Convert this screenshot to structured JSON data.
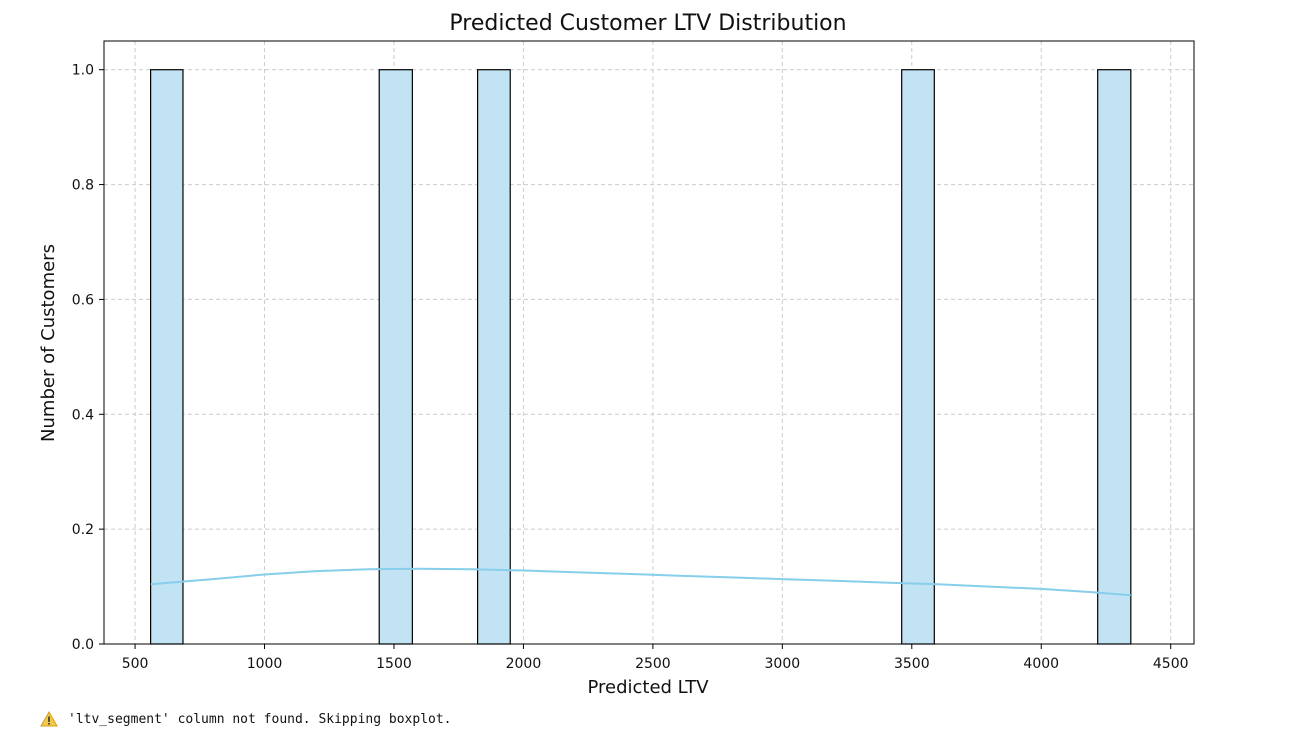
{
  "chart_data": {
    "type": "bar",
    "title": "Predicted Customer LTV Distribution",
    "xlabel": "Predicted LTV",
    "ylabel": "Number of Customers",
    "xlim": [
      380,
      4590
    ],
    "ylim": [
      0,
      1.05
    ],
    "x_ticks": [
      500,
      1000,
      1500,
      2000,
      2500,
      3000,
      3500,
      4000,
      4500
    ],
    "y_ticks": [
      0.0,
      0.2,
      0.4,
      0.6,
      0.8,
      1.0
    ],
    "y_tick_labels": [
      "0.0",
      "0.2",
      "0.4",
      "0.6",
      "0.8",
      "1.0"
    ],
    "bins": [
      {
        "x0": 560,
        "x1": 685,
        "count": 1
      },
      {
        "x0": 1443,
        "x1": 1571,
        "count": 1
      },
      {
        "x0": 1823,
        "x1": 1949,
        "count": 1
      },
      {
        "x0": 3461,
        "x1": 3587,
        "count": 1
      },
      {
        "x0": 4218,
        "x1": 4346,
        "count": 1
      }
    ],
    "kde": {
      "x": [
        560,
        800,
        1000,
        1200,
        1400,
        1600,
        1800,
        2000,
        2200,
        2400,
        2600,
        2800,
        3000,
        3200,
        3400,
        3600,
        3800,
        4000,
        4200,
        4346
      ],
      "y": [
        0.104,
        0.113,
        0.121,
        0.127,
        0.13,
        0.131,
        0.13,
        0.128,
        0.125,
        0.122,
        0.119,
        0.116,
        0.113,
        0.11,
        0.107,
        0.104,
        0.1,
        0.096,
        0.09,
        0.085
      ]
    },
    "grid": true,
    "colors": {
      "bar_fill": "#c2e3f3",
      "bar_edge": "#000000",
      "kde_line": "#87ceeb",
      "grid": "#cccccc"
    }
  },
  "warning": {
    "icon": "warning-icon",
    "text": "'ltv_segment' column not found. Skipping boxplot."
  }
}
